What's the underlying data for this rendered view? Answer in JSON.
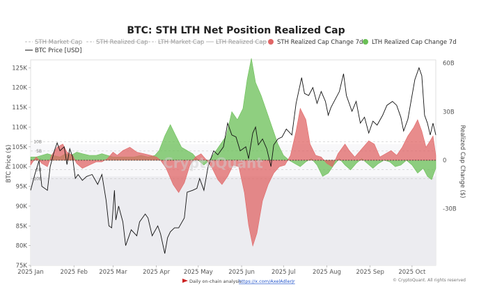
{
  "chart_data": {
    "type": "area",
    "title": "BTC: STH LTH Net Position Realized Cap",
    "legend": [
      {
        "name": "STH Market Cap",
        "color": "#bdbdbd",
        "style": "dash",
        "active": false
      },
      {
        "name": "STH Realized Cap",
        "color": "#bdbdbd",
        "style": "dash",
        "active": false
      },
      {
        "name": "LTH Market Cap",
        "color": "#bdbdbd",
        "style": "dash",
        "active": false
      },
      {
        "name": "LTH Realized Cap",
        "color": "#bdbdbd",
        "style": "solid",
        "active": false
      },
      {
        "name": "STH Realized Cap Change 7d",
        "color": "#e06666",
        "style": "dot",
        "active": true
      },
      {
        "name": "LTH Realized Cap Change 7d",
        "color": "#6abf56",
        "style": "dot",
        "active": true
      },
      {
        "name": "BTC Price [USD]",
        "color": "#111111",
        "style": "solid",
        "active": true
      }
    ],
    "left_axis": {
      "label": "BTC Price ($)",
      "min": 75000,
      "max": 127000,
      "ticks": [
        {
          "v": 75000,
          "t": "75K"
        },
        {
          "v": 80000,
          "t": "80K"
        },
        {
          "v": 85000,
          "t": "85K"
        },
        {
          "v": 90000,
          "t": "90K"
        },
        {
          "v": 95000,
          "t": "95K"
        },
        {
          "v": 100000,
          "t": "100K"
        },
        {
          "v": 105000,
          "t": "105K"
        },
        {
          "v": 110000,
          "t": "110K"
        },
        {
          "v": 115000,
          "t": "115K"
        },
        {
          "v": 120000,
          "t": "120K"
        },
        {
          "v": 125000,
          "t": "125K"
        }
      ]
    },
    "right_axis": {
      "label": "Realized Cap Change ($)",
      "min": -65,
      "max": 62,
      "ticks": [
        {
          "v": 60,
          "t": "60B"
        },
        {
          "v": 30,
          "t": "30B"
        },
        {
          "v": 0,
          "t": "0"
        },
        {
          "v": -30,
          "t": "-30B"
        }
      ]
    },
    "inner_axis": {
      "ticks": [
        {
          "v": 10,
          "t": "10B"
        },
        {
          "v": 5,
          "t": "5B"
        },
        {
          "v": 0,
          "t": "0"
        },
        {
          "v": -5,
          "t": "-5B"
        },
        {
          "v": -10,
          "t": "-10B"
        }
      ]
    },
    "x_axis": {
      "ticks": [
        "2025 Jan",
        "2025 Feb",
        "2025 Mar",
        "2025 Apr",
        "2025 May",
        "2025 Jun",
        "2025 Jul",
        "2025 Aug",
        "2025 Sep",
        "2025 Oct"
      ]
    },
    "x_range": [
      "2025-01-01",
      "2025-10-18"
    ],
    "price_series": [
      [
        "2025-01-01",
        94000
      ],
      [
        "2025-01-04",
        98000
      ],
      [
        "2025-01-07",
        101500
      ],
      [
        "2025-01-09",
        95000
      ],
      [
        "2025-01-13",
        94000
      ],
      [
        "2025-01-15",
        100000
      ],
      [
        "2025-01-18",
        104000
      ],
      [
        "2025-01-20",
        106000
      ],
      [
        "2025-01-22",
        104000
      ],
      [
        "2025-01-25",
        105000
      ],
      [
        "2025-01-27",
        100500
      ],
      [
        "2025-01-29",
        104500
      ],
      [
        "2025-01-31",
        102500
      ],
      [
        "2025-02-02",
        97000
      ],
      [
        "2025-02-04",
        98000
      ],
      [
        "2025-02-07",
        96500
      ],
      [
        "2025-02-10",
        97500
      ],
      [
        "2025-02-14",
        98000
      ],
      [
        "2025-02-18",
        95500
      ],
      [
        "2025-02-21",
        98000
      ],
      [
        "2025-02-24",
        91500
      ],
      [
        "2025-02-26",
        85000
      ],
      [
        "2025-02-28",
        84500
      ],
      [
        "2025-03-02",
        94000
      ],
      [
        "2025-03-03",
        86500
      ],
      [
        "2025-03-05",
        90000
      ],
      [
        "2025-03-08",
        86000
      ],
      [
        "2025-03-10",
        80000
      ],
      [
        "2025-03-12",
        82000
      ],
      [
        "2025-03-14",
        84000
      ],
      [
        "2025-03-18",
        82500
      ],
      [
        "2025-03-20",
        86000
      ],
      [
        "2025-03-24",
        88000
      ],
      [
        "2025-03-26",
        87000
      ],
      [
        "2025-03-29",
        82500
      ],
      [
        "2025-04-02",
        85000
      ],
      [
        "2025-04-04",
        83000
      ],
      [
        "2025-04-07",
        78000
      ],
      [
        "2025-04-09",
        82000
      ],
      [
        "2025-04-11",
        83500
      ],
      [
        "2025-04-14",
        84500
      ],
      [
        "2025-04-17",
        84500
      ],
      [
        "2025-04-21",
        87000
      ],
      [
        "2025-04-23",
        93500
      ],
      [
        "2025-04-27",
        94000
      ],
      [
        "2025-04-30",
        94500
      ],
      [
        "2025-05-02",
        97000
      ],
      [
        "2025-05-05",
        94000
      ],
      [
        "2025-05-08",
        100000
      ],
      [
        "2025-05-12",
        104000
      ],
      [
        "2025-05-15",
        103000
      ],
      [
        "2025-05-19",
        105000
      ],
      [
        "2025-05-22",
        111000
      ],
      [
        "2025-05-25",
        108000
      ],
      [
        "2025-05-28",
        107500
      ],
      [
        "2025-05-31",
        104000
      ],
      [
        "2025-06-04",
        105000
      ],
      [
        "2025-06-06",
        102000
      ],
      [
        "2025-06-09",
        108500
      ],
      [
        "2025-06-11",
        110000
      ],
      [
        "2025-06-13",
        105500
      ],
      [
        "2025-06-16",
        107000
      ],
      [
        "2025-06-19",
        104500
      ],
      [
        "2025-06-22",
        100000
      ],
      [
        "2025-06-24",
        105500
      ],
      [
        "2025-06-27",
        107000
      ],
      [
        "2025-06-30",
        107500
      ],
      [
        "2025-07-03",
        109500
      ],
      [
        "2025-07-07",
        108000
      ],
      [
        "2025-07-10",
        116000
      ],
      [
        "2025-07-14",
        122500
      ],
      [
        "2025-07-16",
        118500
      ],
      [
        "2025-07-19",
        118000
      ],
      [
        "2025-07-22",
        120000
      ],
      [
        "2025-07-25",
        116000
      ],
      [
        "2025-07-28",
        119000
      ],
      [
        "2025-07-31",
        116500
      ],
      [
        "2025-08-02",
        113000
      ],
      [
        "2025-08-04",
        115000
      ],
      [
        "2025-08-07",
        117000
      ],
      [
        "2025-08-10",
        119000
      ],
      [
        "2025-08-13",
        123500
      ],
      [
        "2025-08-15",
        118000
      ],
      [
        "2025-08-19",
        114000
      ],
      [
        "2025-08-22",
        116500
      ],
      [
        "2025-08-25",
        111000
      ],
      [
        "2025-08-28",
        112500
      ],
      [
        "2025-08-31",
        108500
      ],
      [
        "2025-09-03",
        111500
      ],
      [
        "2025-09-06",
        110500
      ],
      [
        "2025-09-10",
        113000
      ],
      [
        "2025-09-13",
        115500
      ],
      [
        "2025-09-17",
        116500
      ],
      [
        "2025-09-20",
        115500
      ],
      [
        "2025-09-23",
        112500
      ],
      [
        "2025-09-25",
        109000
      ],
      [
        "2025-09-28",
        112000
      ],
      [
        "2025-10-01",
        118000
      ],
      [
        "2025-10-03",
        122000
      ],
      [
        "2025-10-06",
        125000
      ],
      [
        "2025-10-08",
        123000
      ],
      [
        "2025-10-10",
        113000
      ],
      [
        "2025-10-12",
        111000
      ],
      [
        "2025-10-14",
        108000
      ],
      [
        "2025-10-16",
        111000
      ],
      [
        "2025-10-18",
        108000
      ]
    ],
    "sth_change_7d": [
      [
        "2025-01-01",
        -3
      ],
      [
        "2025-01-05",
        2
      ],
      [
        "2025-01-09",
        -2
      ],
      [
        "2025-01-13",
        -4
      ],
      [
        "2025-01-16",
        3
      ],
      [
        "2025-01-20",
        8
      ],
      [
        "2025-01-24",
        10
      ],
      [
        "2025-01-27",
        5
      ],
      [
        "2025-01-31",
        3
      ],
      [
        "2025-02-03",
        -2
      ],
      [
        "2025-02-07",
        -5
      ],
      [
        "2025-02-12",
        -3
      ],
      [
        "2025-02-17",
        -1
      ],
      [
        "2025-02-21",
        -1
      ],
      [
        "2025-02-25",
        1
      ],
      [
        "2025-03-01",
        5
      ],
      [
        "2025-03-04",
        3
      ],
      [
        "2025-03-08",
        6
      ],
      [
        "2025-03-13",
        8
      ],
      [
        "2025-03-18",
        5
      ],
      [
        "2025-03-23",
        4
      ],
      [
        "2025-03-28",
        3
      ],
      [
        "2025-04-01",
        2
      ],
      [
        "2025-04-04",
        0
      ],
      [
        "2025-04-08",
        -5
      ],
      [
        "2025-04-13",
        -15
      ],
      [
        "2025-04-17",
        -20
      ],
      [
        "2025-04-21",
        -14
      ],
      [
        "2025-04-25",
        -3
      ],
      [
        "2025-04-29",
        2
      ],
      [
        "2025-05-03",
        4
      ],
      [
        "2025-05-07",
        0
      ],
      [
        "2025-05-11",
        -5
      ],
      [
        "2025-05-15",
        -12
      ],
      [
        "2025-05-18",
        -15
      ],
      [
        "2025-05-22",
        -10
      ],
      [
        "2025-05-26",
        -3
      ],
      [
        "2025-05-30",
        -4
      ],
      [
        "2025-06-03",
        -20
      ],
      [
        "2025-06-06",
        -40
      ],
      [
        "2025-06-09",
        -53
      ],
      [
        "2025-06-12",
        -45
      ],
      [
        "2025-06-16",
        -25
      ],
      [
        "2025-06-20",
        -15
      ],
      [
        "2025-06-24",
        -8
      ],
      [
        "2025-06-28",
        -4
      ],
      [
        "2025-07-02",
        -3
      ],
      [
        "2025-07-06",
        3
      ],
      [
        "2025-07-10",
        18
      ],
      [
        "2025-07-13",
        32
      ],
      [
        "2025-07-17",
        25
      ],
      [
        "2025-07-20",
        10
      ],
      [
        "2025-07-24",
        3
      ],
      [
        "2025-07-28",
        2
      ],
      [
        "2025-08-01",
        -2
      ],
      [
        "2025-08-05",
        -4
      ],
      [
        "2025-08-09",
        4
      ],
      [
        "2025-08-14",
        10
      ],
      [
        "2025-08-17",
        6
      ],
      [
        "2025-08-21",
        2
      ],
      [
        "2025-08-26",
        7
      ],
      [
        "2025-08-31",
        12
      ],
      [
        "2025-09-04",
        10
      ],
      [
        "2025-09-08",
        2
      ],
      [
        "2025-09-12",
        4
      ],
      [
        "2025-09-16",
        6
      ],
      [
        "2025-09-20",
        3
      ],
      [
        "2025-09-24",
        8
      ],
      [
        "2025-09-28",
        15
      ],
      [
        "2025-10-02",
        20
      ],
      [
        "2025-10-05",
        25
      ],
      [
        "2025-10-08",
        18
      ],
      [
        "2025-10-11",
        8
      ],
      [
        "2025-10-14",
        12
      ],
      [
        "2025-10-16",
        15
      ],
      [
        "2025-10-18",
        3
      ]
    ],
    "lth_change_7d": [
      [
        "2025-01-01",
        2
      ],
      [
        "2025-01-05",
        2
      ],
      [
        "2025-01-09",
        3
      ],
      [
        "2025-01-13",
        4
      ],
      [
        "2025-01-17",
        3
      ],
      [
        "2025-01-22",
        2
      ],
      [
        "2025-01-26",
        4
      ],
      [
        "2025-01-30",
        3
      ],
      [
        "2025-02-03",
        5
      ],
      [
        "2025-02-07",
        4
      ],
      [
        "2025-02-12",
        3
      ],
      [
        "2025-02-17",
        3
      ],
      [
        "2025-02-21",
        4
      ],
      [
        "2025-02-25",
        3
      ],
      [
        "2025-03-01",
        2
      ],
      [
        "2025-03-06",
        2
      ],
      [
        "2025-03-11",
        2
      ],
      [
        "2025-03-16",
        2
      ],
      [
        "2025-03-21",
        3
      ],
      [
        "2025-03-26",
        2
      ],
      [
        "2025-03-31",
        3
      ],
      [
        "2025-04-03",
        6
      ],
      [
        "2025-04-07",
        15
      ],
      [
        "2025-04-11",
        22
      ],
      [
        "2025-04-15",
        15
      ],
      [
        "2025-04-19",
        8
      ],
      [
        "2025-04-23",
        6
      ],
      [
        "2025-04-27",
        4
      ],
      [
        "2025-05-01",
        0
      ],
      [
        "2025-05-05",
        -3
      ],
      [
        "2025-05-09",
        0
      ],
      [
        "2025-05-13",
        5
      ],
      [
        "2025-05-17",
        10
      ],
      [
        "2025-05-21",
        15
      ],
      [
        "2025-05-25",
        30
      ],
      [
        "2025-05-29",
        25
      ],
      [
        "2025-06-02",
        32
      ],
      [
        "2025-06-05",
        50
      ],
      [
        "2025-06-08",
        63
      ],
      [
        "2025-06-11",
        48
      ],
      [
        "2025-06-15",
        40
      ],
      [
        "2025-06-19",
        30
      ],
      [
        "2025-06-23",
        20
      ],
      [
        "2025-06-27",
        10
      ],
      [
        "2025-07-01",
        3
      ],
      [
        "2025-07-05",
        0
      ],
      [
        "2025-07-09",
        -2
      ],
      [
        "2025-07-13",
        -4
      ],
      [
        "2025-07-17",
        -1
      ],
      [
        "2025-07-21",
        1
      ],
      [
        "2025-07-25",
        -3
      ],
      [
        "2025-07-29",
        -10
      ],
      [
        "2025-08-02",
        -8
      ],
      [
        "2025-08-06",
        -3
      ],
      [
        "2025-08-10",
        1
      ],
      [
        "2025-08-14",
        -3
      ],
      [
        "2025-08-18",
        -6
      ],
      [
        "2025-08-22",
        -2
      ],
      [
        "2025-08-26",
        1
      ],
      [
        "2025-08-30",
        -2
      ],
      [
        "2025-09-03",
        -5
      ],
      [
        "2025-09-07",
        -2
      ],
      [
        "2025-09-11",
        0
      ],
      [
        "2025-09-15",
        -1
      ],
      [
        "2025-09-19",
        -4
      ],
      [
        "2025-09-23",
        -3
      ],
      [
        "2025-09-27",
        0
      ],
      [
        "2025-10-01",
        -3
      ],
      [
        "2025-10-05",
        -8
      ],
      [
        "2025-10-09",
        -5
      ],
      [
        "2025-10-12",
        -10
      ],
      [
        "2025-10-15",
        -12
      ],
      [
        "2025-10-18",
        -5
      ]
    ],
    "colors": {
      "sth": "#e06666",
      "lth": "#6abf56",
      "price": "#111111",
      "band": "#ececf0",
      "zero_line": "#333333"
    }
  },
  "watermark": "CryptoQuant",
  "footer": {
    "prefix": "Daily on-chain analysis: ",
    "link": "https://x.com/AxelAdlerJr",
    "copyright": "© CryptoQuant. All rights reserved"
  }
}
